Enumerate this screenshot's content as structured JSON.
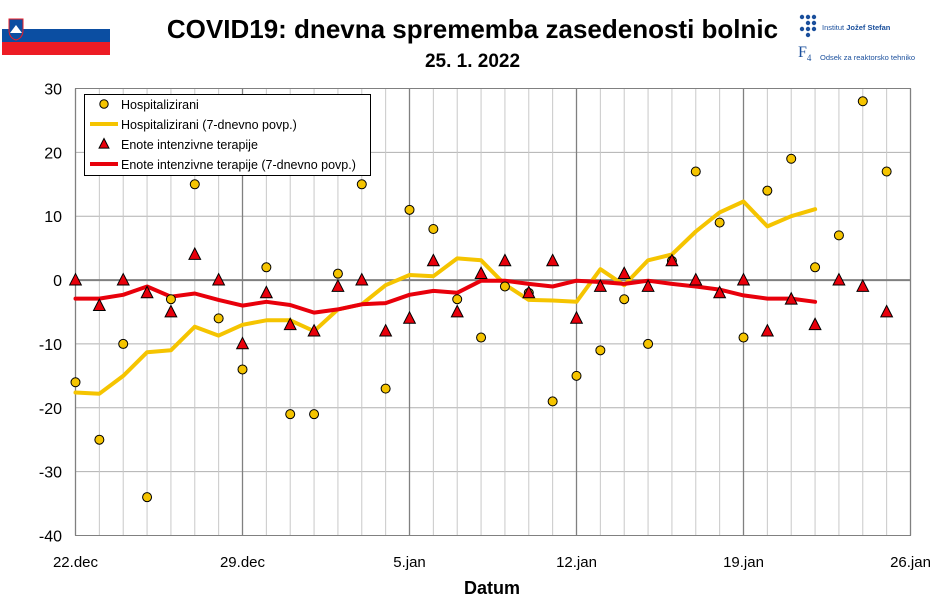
{
  "header": {
    "title": "COVID19: dnevna sprememba zasedenosti bolnic",
    "subtitle": "25. 1. 2022",
    "logo1_prefix": "Institut ",
    "logo1_name": "Jožef Stefan",
    "logo2_mark": "F",
    "logo2_sub": "4",
    "logo2_text": "Odsek za reaktorsko tehniko"
  },
  "colors": {
    "hosp": "#f5c400",
    "icu": "#e8000b",
    "flag_white": "#ffffff",
    "flag_blue": "#0b4ea2",
    "flag_red": "#ed1c24"
  },
  "chart_data": {
    "type": "line",
    "title": "COVID19: dnevna sprememba zasedenosti bolnic",
    "subtitle": "25. 1. 2022",
    "xlabel": "Datum",
    "ylabel": "",
    "xlim": [
      0,
      35
    ],
    "ylim": [
      -40,
      30
    ],
    "yticks": [
      30,
      20,
      10,
      0,
      -10,
      -20,
      -30,
      -40
    ],
    "xticks": [
      {
        "x": 0,
        "label": "22.dec"
      },
      {
        "x": 7,
        "label": "29.dec"
      },
      {
        "x": 14,
        "label": "5.jan"
      },
      {
        "x": 21,
        "label": "12.jan"
      },
      {
        "x": 28,
        "label": "19.jan"
      },
      {
        "x": 35,
        "label": "26.jan"
      }
    ],
    "grid": true,
    "legend_position": "top-left",
    "series": [
      {
        "name": "Hospitalizirani",
        "kind": "marker-circle",
        "x": [
          0,
          1,
          2,
          3,
          4,
          5,
          6,
          7,
          8,
          9,
          10,
          11,
          12,
          13,
          14,
          15,
          16,
          17,
          18,
          19,
          20,
          21,
          22,
          23,
          24,
          25,
          26,
          27,
          28,
          29,
          30,
          31,
          32,
          33,
          34
        ],
        "y": [
          -16,
          -25,
          -10,
          -34,
          -3,
          15,
          -6,
          -14,
          2,
          -21,
          -21,
          1,
          15,
          -17,
          11,
          8,
          -3,
          -9,
          -1,
          -2,
          -19,
          -15,
          -11,
          -3,
          -10,
          3,
          17,
          9,
          -9,
          14,
          19,
          2,
          7,
          28,
          17
        ]
      },
      {
        "name": "Hospitalizirani (7-dnevno povp.)",
        "kind": "line",
        "x": [
          0,
          1,
          2,
          3,
          4,
          5,
          6,
          7,
          8,
          9,
          10,
          11,
          12,
          13,
          14,
          15,
          16,
          17,
          18,
          19,
          20,
          21,
          22,
          23,
          24,
          25,
          26,
          27,
          28,
          29,
          30,
          31
        ],
        "y": [
          -17.6,
          -17.8,
          -15,
          -11.3,
          -11,
          -7.3,
          -8.7,
          -7,
          -6.3,
          -6.3,
          -8,
          -4.6,
          -3.8,
          -0.8,
          0.8,
          0.6,
          3.4,
          3.1,
          -0.7,
          -3.1,
          -3.2,
          -3.4,
          1.7,
          -0.8,
          3.1,
          4,
          7.6,
          10.6,
          12.3,
          8.4,
          10,
          11.1
        ]
      },
      {
        "name": "Enote intenzivne terapije",
        "kind": "marker-triangle",
        "x": [
          0,
          1,
          2,
          3,
          4,
          5,
          6,
          7,
          8,
          9,
          10,
          11,
          12,
          13,
          14,
          15,
          16,
          17,
          18,
          19,
          20,
          21,
          22,
          23,
          24,
          25,
          26,
          27,
          28,
          29,
          30,
          31,
          32,
          33,
          34
        ],
        "y": [
          0,
          -4,
          0,
          -2,
          -5,
          4,
          0,
          -10,
          -2,
          -7,
          -8,
          -1,
          0,
          -8,
          -6,
          3,
          -5,
          1,
          3,
          -2,
          3,
          -6,
          -1,
          1,
          -1,
          3,
          0,
          -2,
          0,
          -8,
          -3,
          -7,
          0,
          -1,
          -5
        ]
      },
      {
        "name": "Enote intenzivne terapije (7-dnevno povp.)",
        "kind": "line",
        "x": [
          0,
          1,
          2,
          3,
          4,
          5,
          6,
          7,
          8,
          9,
          10,
          11,
          12,
          13,
          14,
          15,
          16,
          17,
          18,
          19,
          20,
          21,
          22,
          23,
          24,
          25,
          26,
          27,
          28,
          29,
          30,
          31
        ],
        "y": [
          -2.9,
          -2.9,
          -2.3,
          -1,
          -2.6,
          -2.1,
          -3.1,
          -4,
          -3.4,
          -3.9,
          -5.1,
          -4.6,
          -3.8,
          -3.6,
          -2.3,
          -1.7,
          -2,
          -0.1,
          -0.1,
          -0.6,
          -1,
          -0.1,
          -0.3,
          -0.6,
          -0.1,
          -0.6,
          -1,
          -1.5,
          -2.4,
          -2.9,
          -2.9,
          -3.4
        ]
      }
    ]
  }
}
